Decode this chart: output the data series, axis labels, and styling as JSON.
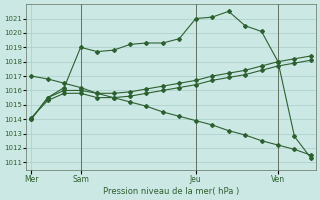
{
  "background_color": "#cce8e4",
  "grid_color": "#a8cec8",
  "line_color": "#2d6030",
  "xlabel": "Pression niveau de la mer( hPa )",
  "ylim": [
    1010.5,
    1022.0
  ],
  "yticks": [
    1011,
    1012,
    1013,
    1014,
    1015,
    1016,
    1017,
    1018,
    1019,
    1020,
    1021
  ],
  "xtick_labels": [
    "Mer",
    "Sam",
    "Jeu",
    "Ven"
  ],
  "n_total": 18,
  "mer_idx": 0,
  "sam_idx": 3,
  "jeu_idx": 10,
  "ven_idx": 15,
  "line1_x": [
    0,
    1,
    2,
    3,
    4,
    5,
    6,
    7,
    8,
    9,
    10,
    11,
    12,
    13,
    14,
    15,
    16,
    17
  ],
  "line1_y": [
    1014.0,
    1015.5,
    1016.2,
    1019.0,
    1018.7,
    1018.8,
    1019.2,
    1019.3,
    1019.3,
    1019.6,
    1021.0,
    1021.1,
    1021.5,
    1020.5,
    1020.1,
    1018.0,
    1012.8,
    1011.3
  ],
  "line2_x": [
    0,
    1,
    2,
    3,
    4,
    5,
    6,
    7,
    8,
    9,
    10,
    11,
    12,
    13,
    14,
    15,
    16,
    17
  ],
  "line2_y": [
    1014.0,
    1015.5,
    1016.0,
    1016.0,
    1015.8,
    1015.8,
    1015.9,
    1016.1,
    1016.3,
    1016.5,
    1016.7,
    1017.0,
    1017.2,
    1017.4,
    1017.7,
    1018.0,
    1018.2,
    1018.4
  ],
  "line2b_x": [
    0,
    1,
    2,
    3,
    4,
    5,
    6,
    7,
    8,
    9,
    10,
    11,
    12,
    13,
    14,
    15,
    16,
    17
  ],
  "line2b_y": [
    1014.1,
    1015.3,
    1015.8,
    1015.8,
    1015.5,
    1015.5,
    1015.6,
    1015.8,
    1016.0,
    1016.2,
    1016.4,
    1016.7,
    1016.9,
    1017.1,
    1017.4,
    1017.7,
    1017.9,
    1018.1
  ],
  "line3_x": [
    0,
    1,
    2,
    3,
    4,
    5,
    6,
    7,
    8,
    9,
    10,
    11,
    12,
    13,
    14,
    15,
    16,
    17
  ],
  "line3_y": [
    1017.0,
    1016.8,
    1016.5,
    1016.2,
    1015.8,
    1015.5,
    1015.2,
    1014.9,
    1014.5,
    1014.2,
    1013.9,
    1013.6,
    1013.2,
    1012.9,
    1012.5,
    1012.2,
    1011.9,
    1011.5
  ],
  "vline_positions": [
    3,
    10,
    15
  ]
}
